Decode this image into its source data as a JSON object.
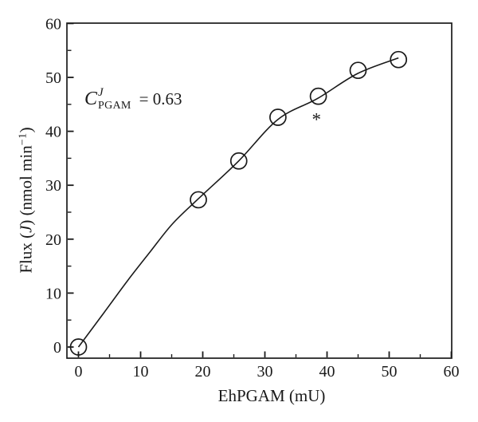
{
  "figure": {
    "background": "#ffffff",
    "ink_color": "#1a1a1a"
  },
  "axes": {
    "x_label": "EhPGAM (mU)",
    "y_label_parts": {
      "pre": "Flux (",
      "italic_j": "J",
      "mid": ") (nmol min",
      "sup": "−1",
      "post": ")"
    }
  },
  "annotation": {
    "c": "C",
    "sup": "J",
    "sub": "PGAM",
    "eq": "= 0.63"
  },
  "chart_data": {
    "type": "scatter",
    "title": "",
    "xlabel": "EhPGAM (mU)",
    "ylabel": "Flux (J) (nmol min−1)",
    "xlim": [
      -2,
      60
    ],
    "ylim": [
      -2,
      60
    ],
    "grid": false,
    "legend": "none",
    "x_major_ticks": [
      0,
      10,
      20,
      30,
      40,
      50,
      60
    ],
    "x_minor_ticks": [
      5,
      15,
      25,
      35,
      45,
      55
    ],
    "y_major_ticks": [
      0,
      10,
      20,
      30,
      40,
      50,
      60
    ],
    "y_minor_ticks": [
      5,
      15,
      25,
      35,
      45,
      55
    ],
    "series": [
      {
        "name": "flux data points",
        "marker": "open-circle",
        "points": [
          [
            0,
            0
          ],
          [
            19.3,
            27.3
          ],
          [
            25.8,
            34.5
          ],
          [
            32.1,
            42.6
          ],
          [
            38.6,
            46.5
          ],
          [
            45.0,
            51.3
          ],
          [
            51.5,
            53.3
          ]
        ]
      },
      {
        "name": "hyperbolic fit curve",
        "marker": "line",
        "points": [
          [
            0,
            0
          ],
          [
            4,
            6.2
          ],
          [
            7.9,
            12.3
          ],
          [
            11.5,
            17.6
          ],
          [
            15.1,
            22.8
          ],
          [
            19.3,
            27.5
          ],
          [
            25.7,
            34.4
          ],
          [
            32.1,
            42.2
          ],
          [
            38.5,
            46.1
          ],
          [
            44.9,
            50.7
          ],
          [
            51.5,
            53.6
          ]
        ]
      }
    ],
    "annotations": [
      {
        "text": "C^J_PGAM = 0.63",
        "x": 1,
        "y": 47
      },
      {
        "text": "*",
        "x": 38.3,
        "y": 42.5
      }
    ]
  }
}
